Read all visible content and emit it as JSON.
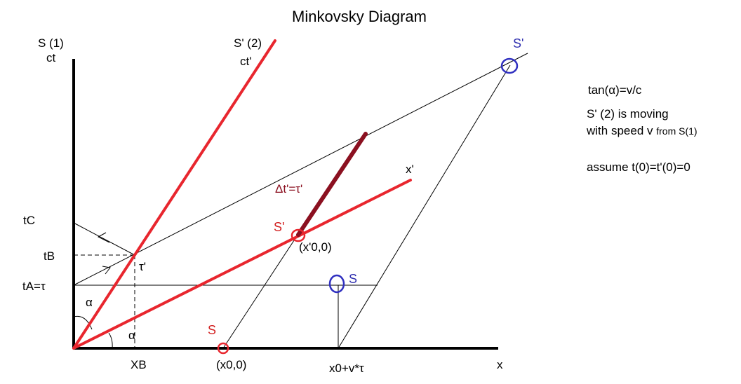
{
  "title": "Minkovsky Diagram",
  "axes": {
    "s1_label": "S  (1)",
    "ct_label": "ct",
    "s2_label": "S'  (2)",
    "ctp_label": "ct'",
    "xp_label": "x'",
    "x_label": "x"
  },
  "ticks": {
    "tC": "tC",
    "tB": "tB",
    "tA": "tA=τ",
    "XB": "XB",
    "x00": "(x0,0)",
    "x0vt": "x0+v*τ"
  },
  "angles": {
    "alpha_upper": "α",
    "alpha_lower": "α",
    "tau_prime": "τ'"
  },
  "points": {
    "s_red": "S",
    "s_blue": "S",
    "sp_red": "S'",
    "sp_blue": "S'",
    "xp00": "(x'0,0)"
  },
  "segment_label": "Δt'=τ'",
  "notes": {
    "line1": "tan(α)=v/c",
    "line2": "S' (2) is moving",
    "line3_main": "with speed v ",
    "line3_small": "from S(1)",
    "line4": "assume t(0)=t'(0)=0"
  },
  "colors": {
    "axis": "#000000",
    "red_line": "#e8262e",
    "dark_red": "#8b1020",
    "blue": "#3030c0",
    "thin": "#000000"
  }
}
